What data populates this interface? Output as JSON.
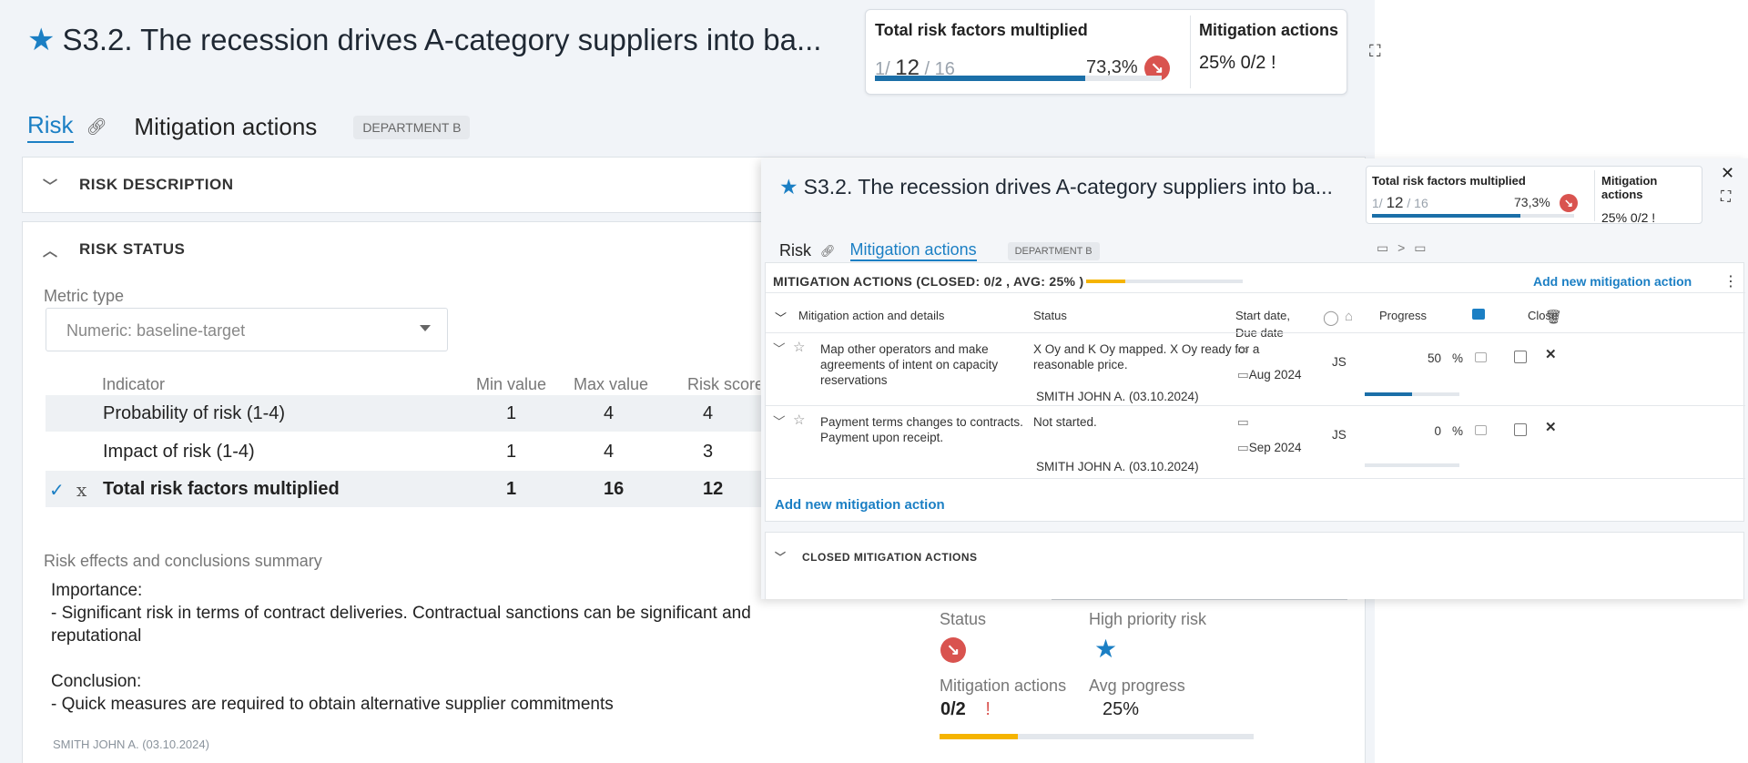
{
  "risk": {
    "title": "S3.2. The recession drives A-category suppliers into ba...",
    "tabs": {
      "risk": "Risk",
      "mitigation": "Mitigation actions"
    },
    "department": "DEPARTMENT B",
    "kpi": {
      "total_label": "Total risk factors multiplied",
      "total_prefix": "1/",
      "total_value": "12",
      "total_max": "/ 16",
      "total_percent": "73,3%",
      "total_progress": 0.733,
      "mitigation_label": "Mitigation actions",
      "mitigation_value": "25%  0/2 !"
    },
    "sections": {
      "description": "RISK DESCRIPTION",
      "status": "RISK STATUS"
    },
    "metric": {
      "label": "Metric type",
      "value": "Numeric: baseline-target"
    },
    "indicator_table": {
      "headers": {
        "indicator": "Indicator",
        "min": "Min value",
        "max": "Max value",
        "score": "Risk score"
      },
      "rows": [
        {
          "name": "Probability of risk (1-4)",
          "min": "1",
          "max": "4",
          "score": "4"
        },
        {
          "name": "Impact of risk (1-4)",
          "min": "1",
          "max": "4",
          "score": "3"
        },
        {
          "name": "Total risk factors multiplied",
          "min": "1",
          "max": "16",
          "score": "12"
        }
      ]
    },
    "summary": {
      "label": "Risk effects and conclusions summary",
      "line1": "Importance:",
      "line2": "- Significant risk in terms of contract deliveries. Contractual sanctions can be significant and reputational",
      "line3": "Conclusion:",
      "line4": "- Quick measures are required to obtain alternative supplier commitments",
      "author": "SMITH JOHN A. (03.10.2024)"
    },
    "status_box": {
      "status_label": "Status",
      "priority_label": "High priority risk",
      "mitigation_label": "Mitigation actions",
      "mitigation_value": "0/2",
      "mitigation_flag": "!",
      "avg_label": "Avg progress",
      "avg_value": "25%",
      "avg_progress": 0.25
    }
  },
  "overlay": {
    "title": "S3.2. The recession drives A-category suppliers into ba...",
    "kpi": {
      "total_label": "Total risk factors multiplied",
      "total_prefix": "1/",
      "total_value": "12",
      "total_max": "/ 16",
      "total_percent": "73,3%",
      "mitigation_label": "Mitigation actions",
      "mitigation_value": "25%  0/2 !"
    },
    "tabs": {
      "risk": "Risk",
      "mitigation": "Mitigation actions"
    },
    "department": "DEPARTMENT B",
    "mitigation": {
      "header": "MITIGATION ACTIONS (CLOSED: 0/2 , AVG: 25% )",
      "progress": 0.25,
      "add_label": "Add new mitigation action",
      "columns": {
        "action": "Mitigation action and details",
        "status": "Status",
        "dates_1": "Start date,",
        "dates_2": "Due date",
        "progress": "Progress",
        "close": "Close"
      },
      "rows": [
        {
          "action": "Map other operators and make agreements of intent on capacity reservations",
          "status": "X Oy and K Oy mapped. X Oy ready for a reasonable price.",
          "author": "SMITH JOHN A. (03.10.2024)",
          "due": "Aug 2024",
          "owner": "JS",
          "progress_value": "50",
          "progress": 0.5,
          "unit": "%"
        },
        {
          "action": "Payment terms changes to contracts. Payment upon receipt.",
          "status": "Not started.",
          "author": "SMITH JOHN A. (03.10.2024)",
          "due": "Sep 2024",
          "owner": "JS",
          "progress_value": "0",
          "progress": 0,
          "unit": "%"
        }
      ],
      "add_bottom": "Add new mitigation action"
    },
    "closed_header": "CLOSED MITIGATION ACTIONS"
  },
  "colors": {
    "accent": "#1b7fc4",
    "danger": "#d9534f",
    "warning": "#f5b400",
    "progress": "#1b6fa8"
  }
}
